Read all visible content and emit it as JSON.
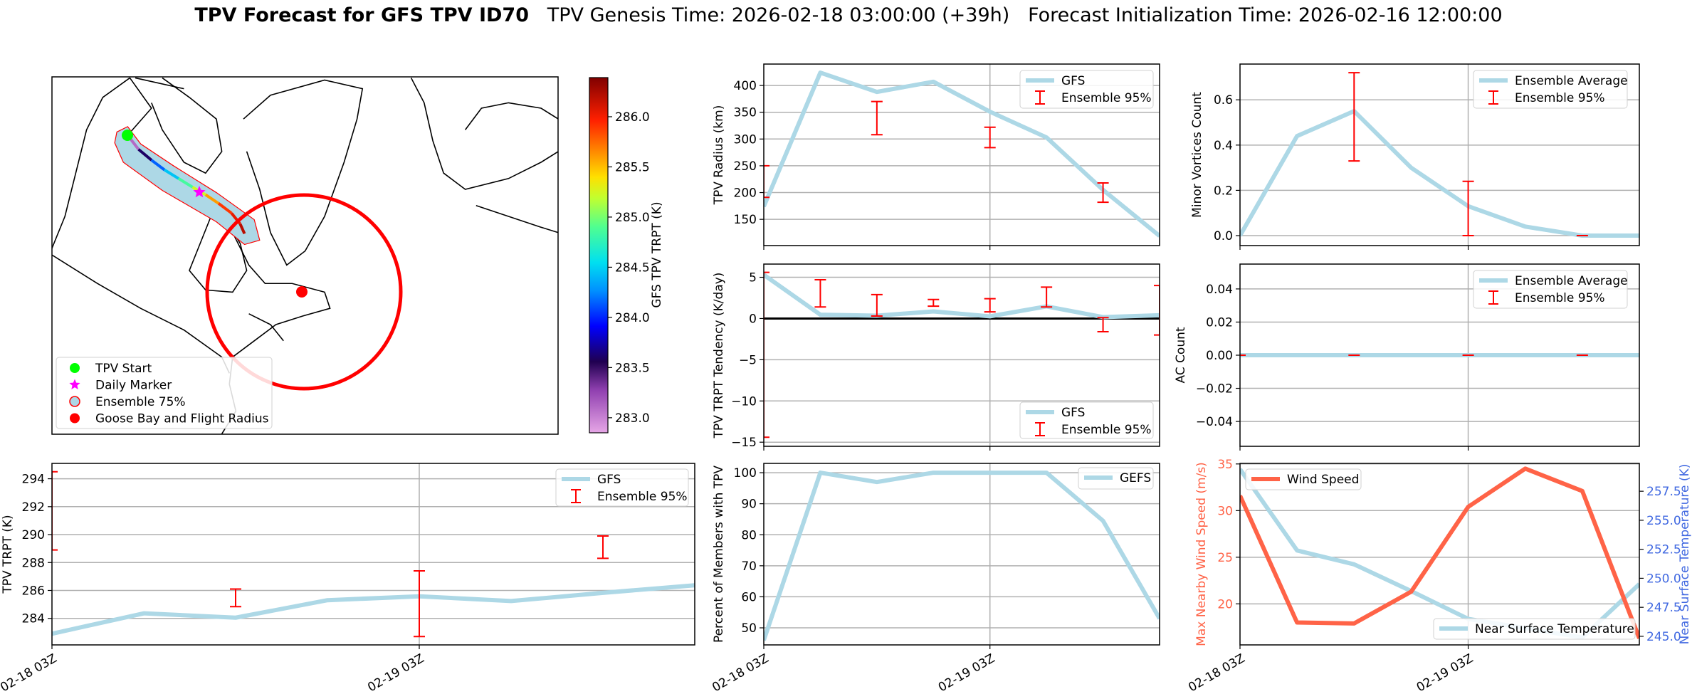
{
  "title": {
    "bold": "TPV Forecast for GFS TPV ID70",
    "genesis": "TPV Genesis Time: 2026-02-18 03:00:00 (+39h)",
    "init": "Forecast Initialization Time: 2026-02-16 12:00:00"
  },
  "map": {
    "legend": [
      {
        "label": "TPV Start",
        "kind": "dot",
        "color": "#00ff00"
      },
      {
        "label": "Daily Marker",
        "kind": "star",
        "color": "#ff00ff"
      },
      {
        "label": "Ensemble 75%",
        "kind": "patch",
        "color": "#add8e6",
        "edge": "#ff0000"
      },
      {
        "label": "Goose Bay and Flight Radius",
        "kind": "dot",
        "color": "#ff0000"
      }
    ],
    "colorbar": {
      "label": "GFS TPV TRPT (K)",
      "range": [
        282.85,
        286.39
      ],
      "ticks": [
        {
          "value": 283.0,
          "label": "283.0"
        },
        {
          "value": 283.5,
          "label": "283.5"
        },
        {
          "value": 284.0,
          "label": "284.0"
        },
        {
          "value": 284.5,
          "label": "284.5"
        },
        {
          "value": 285.0,
          "label": "285.0"
        },
        {
          "value": 285.5,
          "label": "285.5"
        },
        {
          "value": 286.0,
          "label": "286.0"
        }
      ],
      "colormap": "jet-with-violet-base"
    }
  },
  "chart_data": [
    {
      "id": "radius",
      "type": "line",
      "ylabel": "TPV Radius (km)",
      "ylim": [
        101,
        440
      ],
      "yticks": [
        {
          "value": 150,
          "label": "150"
        },
        {
          "value": 200,
          "label": "200"
        },
        {
          "value": 250,
          "label": "250"
        },
        {
          "value": 300,
          "label": "300"
        },
        {
          "value": 350,
          "label": "350"
        },
        {
          "value": 400,
          "label": "400"
        }
      ],
      "x": [
        "2026-02-18 03:00",
        "2026-02-18 09:00",
        "2026-02-18 15:00",
        "2026-02-18 21:00",
        "2026-02-19 03:00",
        "2026-02-19 09:00",
        "2026-02-19 15:00",
        "2026-02-19 21:00"
      ],
      "xticks": [],
      "series": [
        {
          "name": "GFS",
          "values": [
            174,
            424,
            388,
            407,
            351,
            303,
            205,
            119
          ],
          "color": "#add8e6"
        }
      ],
      "errorbars": {
        "name": "Ensemble 95%",
        "color": "#ff0000",
        "points": [
          {
            "x": "2026-02-18 03:00",
            "low": 191,
            "high": 250
          },
          {
            "x": "2026-02-18 15:00",
            "low": 308,
            "high": 370
          },
          {
            "x": "2026-02-19 03:00",
            "low": 284,
            "high": 322
          },
          {
            "x": "2026-02-19 15:00",
            "low": 182,
            "high": 218
          }
        ]
      },
      "legend": {
        "placement": "upper right",
        "entries": [
          {
            "label": "GFS",
            "kind": "line",
            "color": "#add8e6"
          },
          {
            "label": "Ensemble 95%",
            "kind": "errorbar",
            "color": "#ff0000"
          }
        ]
      },
      "grid": true
    },
    {
      "id": "minor",
      "type": "line",
      "ylabel": "Minor Vortices Count",
      "ylim": [
        -0.044,
        0.758
      ],
      "yticks": [
        {
          "value": 0,
          "label": "0.0"
        },
        {
          "value": 0.2,
          "label": "0.2"
        },
        {
          "value": 0.4,
          "label": "0.4"
        },
        {
          "value": 0.6,
          "label": "0.6"
        }
      ],
      "x": [
        "2026-02-18 03:00",
        "2026-02-18 09:00",
        "2026-02-18 15:00",
        "2026-02-18 21:00",
        "2026-02-19 03:00",
        "2026-02-19 09:00",
        "2026-02-19 15:00",
        "2026-02-19 21:00"
      ],
      "xticks": [],
      "series": [
        {
          "name": "Ensemble Average",
          "values": [
            0.0,
            0.44,
            0.55,
            0.3,
            0.13,
            0.04,
            0.0,
            0.0
          ],
          "color": "#add8e6"
        }
      ],
      "errorbars": {
        "name": "Ensemble 95%",
        "color": "#ff0000",
        "points": [
          {
            "x": "2026-02-18 15:00",
            "low": 0.33,
            "high": 0.72
          },
          {
            "x": "2026-02-19 03:00",
            "low": 0.0,
            "high": 0.24
          },
          {
            "x": "2026-02-19 15:00",
            "low": 0.0,
            "high": 0.0
          }
        ]
      },
      "legend": {
        "placement": "upper right",
        "entries": [
          {
            "label": "Ensemble Average",
            "kind": "line",
            "color": "#add8e6"
          },
          {
            "label": "Ensemble 95%",
            "kind": "errorbar",
            "color": "#ff0000"
          }
        ]
      },
      "grid": true
    },
    {
      "id": "tend",
      "type": "line",
      "ylabel": "TPV TRPT Tendency (K/day)",
      "ylim": [
        -15.5,
        6.6
      ],
      "yticks": [
        {
          "value": -15,
          "label": "−15"
        },
        {
          "value": -10,
          "label": "−10"
        },
        {
          "value": -5,
          "label": "−5"
        },
        {
          "value": 0,
          "label": "0"
        },
        {
          "value": 5,
          "label": "5"
        }
      ],
      "x": [
        "2026-02-18 03:00",
        "2026-02-18 09:00",
        "2026-02-18 15:00",
        "2026-02-18 21:00",
        "2026-02-19 03:00",
        "2026-02-19 09:00",
        "2026-02-19 15:00",
        "2026-02-19 21:00"
      ],
      "xticks": [],
      "zero_line": true,
      "series": [
        {
          "name": "GFS",
          "values": [
            5.3,
            0.46,
            0.34,
            0.86,
            0.26,
            1.47,
            0.17,
            0.4
          ],
          "color": "#add8e6"
        }
      ],
      "errorbars": {
        "name": "Ensemble 95%",
        "color": "#ff0000",
        "points": [
          {
            "x": "2026-02-18 03:00",
            "low": -14.4,
            "high": 5.6
          },
          {
            "x": "2026-02-18 09:00",
            "low": 1.4,
            "high": 4.7
          },
          {
            "x": "2026-02-18 15:00",
            "low": 0.3,
            "high": 2.9
          },
          {
            "x": "2026-02-18 21:00",
            "low": 1.5,
            "high": 2.3
          },
          {
            "x": "2026-02-19 03:00",
            "low": 0.8,
            "high": 2.4
          },
          {
            "x": "2026-02-19 09:00",
            "low": 1.4,
            "high": 3.8
          },
          {
            "x": "2026-02-19 15:00",
            "low": -1.6,
            "high": 0.1
          },
          {
            "x": "2026-02-19 21:00",
            "low": -2.0,
            "high": 4.0
          }
        ]
      },
      "legend": {
        "placement": "lower right",
        "entries": [
          {
            "label": "GFS",
            "kind": "line",
            "color": "#add8e6"
          },
          {
            "label": "Ensemble 95%",
            "kind": "errorbar",
            "color": "#ff0000"
          }
        ]
      },
      "grid": true
    },
    {
      "id": "ac",
      "type": "line",
      "ylabel": "AC Count",
      "ylim": [
        -0.055,
        0.055
      ],
      "yticks": [
        {
          "value": -0.04,
          "label": "−0.04"
        },
        {
          "value": -0.02,
          "label": "−0.02"
        },
        {
          "value": 0,
          "label": "0.00"
        },
        {
          "value": 0.02,
          "label": "0.02"
        },
        {
          "value": 0.04,
          "label": "0.04"
        }
      ],
      "x": [
        "2026-02-18 03:00",
        "2026-02-18 09:00",
        "2026-02-18 15:00",
        "2026-02-18 21:00",
        "2026-02-19 03:00",
        "2026-02-19 09:00",
        "2026-02-19 15:00",
        "2026-02-19 21:00"
      ],
      "xticks": [],
      "series": [
        {
          "name": "Ensemble Average",
          "values": [
            0,
            0,
            0,
            0,
            0,
            0,
            0,
            0
          ],
          "color": "#add8e6"
        }
      ],
      "errorbars": {
        "name": "Ensemble 95%",
        "color": "#ff0000",
        "points": [
          {
            "x": "2026-02-18 03:00",
            "low": 0,
            "high": 0
          },
          {
            "x": "2026-02-18 15:00",
            "low": 0,
            "high": 0
          },
          {
            "x": "2026-02-19 03:00",
            "low": 0,
            "high": 0
          },
          {
            "x": "2026-02-19 15:00",
            "low": 0,
            "high": 0
          }
        ]
      },
      "legend": {
        "placement": "upper right",
        "entries": [
          {
            "label": "Ensemble Average",
            "kind": "line",
            "color": "#add8e6"
          },
          {
            "label": "Ensemble 95%",
            "kind": "errorbar",
            "color": "#ff0000"
          }
        ]
      },
      "grid": true
    },
    {
      "id": "trpt",
      "type": "line",
      "ylabel": "TPV TRPT (K)",
      "ylim": [
        282.1,
        295.1
      ],
      "yticks": [
        {
          "value": 284,
          "label": "284"
        },
        {
          "value": 286,
          "label": "286"
        },
        {
          "value": 288,
          "label": "288"
        },
        {
          "value": 290,
          "label": "290"
        },
        {
          "value": 292,
          "label": "292"
        },
        {
          "value": 294,
          "label": "294"
        }
      ],
      "x": [
        "2026-02-18 03:00",
        "2026-02-18 09:00",
        "2026-02-18 15:00",
        "2026-02-18 21:00",
        "2026-02-19 03:00",
        "2026-02-19 09:00",
        "2026-02-19 15:00",
        "2026-02-19 21:00"
      ],
      "xticks": [
        {
          "x": "2026-02-18 03:00",
          "label": "02-18 03Z"
        },
        {
          "x": "2026-02-19 03:00",
          "label": "02-19 03Z"
        }
      ],
      "series": [
        {
          "name": "GFS",
          "values": [
            282.9,
            284.36,
            284.05,
            285.3,
            285.58,
            285.24,
            285.83,
            286.37
          ],
          "color": "#add8e6"
        }
      ],
      "errorbars": {
        "name": "Ensemble 95%",
        "color": "#ff0000",
        "points": [
          {
            "x": "2026-02-18 03:00",
            "low": 288.9,
            "high": 294.5
          },
          {
            "x": "2026-02-18 15:00",
            "low": 284.84,
            "high": 286.1
          },
          {
            "x": "2026-02-19 03:00",
            "low": 282.7,
            "high": 287.4
          },
          {
            "x": "2026-02-19 15:00",
            "low": 288.3,
            "high": 289.9
          }
        ]
      },
      "legend": {
        "placement": "upper right",
        "entries": [
          {
            "label": "GFS",
            "kind": "line",
            "color": "#add8e6"
          },
          {
            "label": "Ensemble 95%",
            "kind": "errorbar",
            "color": "#ff0000"
          }
        ]
      },
      "grid": true
    },
    {
      "id": "pct",
      "type": "line",
      "ylabel": "Percent of Members with TPV",
      "ylim": [
        44.5,
        103
      ],
      "yticks": [
        {
          "value": 50,
          "label": "50"
        },
        {
          "value": 60,
          "label": "60"
        },
        {
          "value": 70,
          "label": "70"
        },
        {
          "value": 80,
          "label": "80"
        },
        {
          "value": 90,
          "label": "90"
        },
        {
          "value": 100,
          "label": "100"
        }
      ],
      "x": [
        "2026-02-18 03:00",
        "2026-02-18 09:00",
        "2026-02-18 15:00",
        "2026-02-18 21:00",
        "2026-02-19 03:00",
        "2026-02-19 09:00",
        "2026-02-19 15:00",
        "2026-02-19 21:00"
      ],
      "xticks": [
        {
          "x": "2026-02-18 03:00",
          "label": "02-18 03Z"
        },
        {
          "x": "2026-02-19 03:00",
          "label": "02-19 03Z"
        }
      ],
      "series": [
        {
          "name": "GEFS",
          "values": [
            46,
            100,
            97,
            100,
            100,
            100,
            84.5,
            53
          ],
          "color": "#add8e6"
        }
      ],
      "legend": {
        "placement": "upper right",
        "entries": [
          {
            "label": "GEFS",
            "kind": "line",
            "color": "#add8e6"
          }
        ]
      },
      "grid": true
    },
    {
      "id": "wind",
      "type": "line",
      "ylabel": "Max Nearby Wind Speed (m/s)",
      "ylabel_color": "#ff6347",
      "ylim": [
        15.6,
        35.06
      ],
      "yticks": [
        {
          "value": 20,
          "label": "20"
        },
        {
          "value": 25,
          "label": "25"
        },
        {
          "value": 30,
          "label": "30"
        },
        {
          "value": 35,
          "label": "35"
        }
      ],
      "x": [
        "2026-02-18 03:00",
        "2026-02-18 09:00",
        "2026-02-18 15:00",
        "2026-02-18 21:00",
        "2026-02-19 03:00",
        "2026-02-19 09:00",
        "2026-02-19 15:00",
        "2026-02-19 21:00"
      ],
      "xticks": [
        {
          "x": "2026-02-18 03:00",
          "label": "02-18 03Z"
        },
        {
          "x": "2026-02-19 03:00",
          "label": "02-19 03Z"
        }
      ],
      "series": [
        {
          "name": "Wind Speed",
          "values": [
            31.6,
            18.0,
            17.9,
            21.3,
            30.4,
            34.5,
            32.1,
            16.3
          ],
          "color": "#ff6347"
        }
      ],
      "legend": {
        "placement": "upper left",
        "entries": [
          {
            "label": "Wind Speed",
            "kind": "line",
            "color": "#ff6347"
          }
        ]
      },
      "right_axis": {
        "ylabel": "Near Surface Temperature (K)",
        "color": "#4169e1",
        "ylim": [
          244.26,
          259.9
        ],
        "yticks": [
          {
            "value": 245,
            "label": "245.0"
          },
          {
            "value": 247.5,
            "label": "247.5"
          },
          {
            "value": 250,
            "label": "250.0"
          },
          {
            "value": 252.5,
            "label": "252.5"
          },
          {
            "value": 255,
            "label": "255.0"
          },
          {
            "value": 257.5,
            "label": "257.5"
          }
        ],
        "series": [
          {
            "name": "Near Surface Temperature",
            "values": [
              259.4,
              252.4,
              251.2,
              248.9,
              246.5,
              245.7,
              244.9,
              249.5
            ],
            "color": "#add8e6"
          }
        ],
        "legend": {
          "placement": "lower right",
          "entries": [
            {
              "label": "Near Surface Temperature",
              "kind": "line",
              "color": "#add8e6"
            }
          ]
        }
      },
      "grid": true
    }
  ]
}
